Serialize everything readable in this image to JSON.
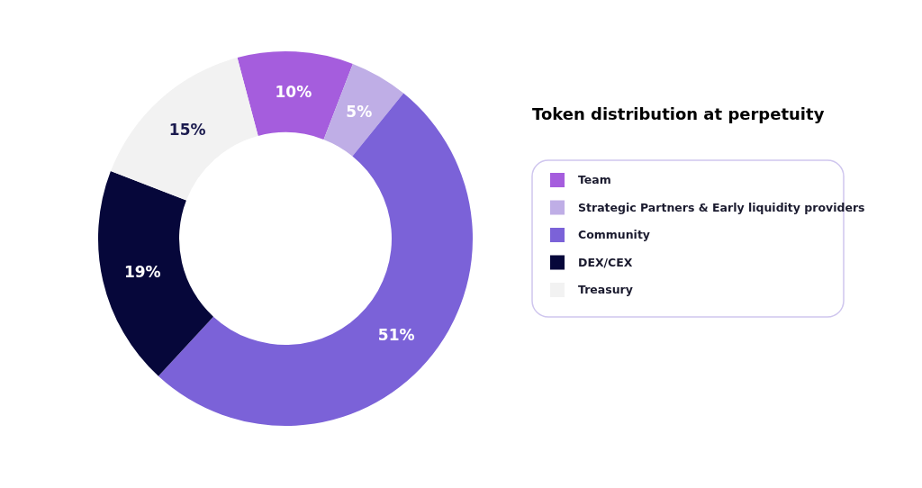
{
  "chart_data": {
    "type": "donut",
    "title": "Token distribution at perpetuity",
    "categories": [
      "Team",
      "Strategic Partners & Early liquidity providers",
      "Community",
      "DEX/CEX",
      "Treasury"
    ],
    "values": [
      10,
      5,
      51,
      19,
      15
    ],
    "colors": [
      "#a55ddd",
      "#bfaee6",
      "#7b62d8",
      "#06073a",
      "#f2f2f2"
    ],
    "value_labels": [
      "10%",
      "5%",
      "51%",
      "19%",
      "15%"
    ],
    "legend": "right"
  }
}
